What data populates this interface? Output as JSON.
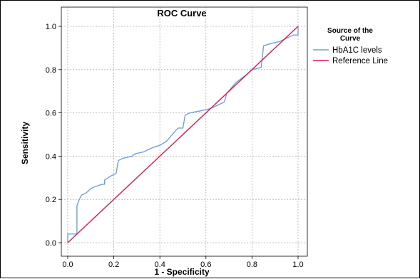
{
  "chart_data": {
    "type": "line",
    "title": "ROC Curve",
    "xlabel": "1 - Specificity",
    "ylabel": "Sensitivity",
    "xlim": [
      0,
      1
    ],
    "ylim": [
      0,
      1
    ],
    "xticks": [
      "0.0",
      "0.2",
      "0.4",
      "0.6",
      "0.8",
      "1.0"
    ],
    "yticks": [
      "0.0",
      "0.2",
      "0.4",
      "0.6",
      "0.8",
      "1.0"
    ],
    "grid": true,
    "legend": {
      "title_line1": "Source of the",
      "title_line2": "Curve",
      "placement": "right"
    },
    "series": [
      {
        "name": "HbA1C levels",
        "color": "#6fa0dc",
        "points": [
          [
            0,
            0
          ],
          [
            0,
            0.04
          ],
          [
            0.04,
            0.04
          ],
          [
            0.04,
            0.17
          ],
          [
            0.05,
            0.2
          ],
          [
            0.06,
            0.22
          ],
          [
            0.08,
            0.23
          ],
          [
            0.1,
            0.25
          ],
          [
            0.12,
            0.26
          ],
          [
            0.15,
            0.27
          ],
          [
            0.16,
            0.27
          ],
          [
            0.16,
            0.29
          ],
          [
            0.19,
            0.31
          ],
          [
            0.21,
            0.32
          ],
          [
            0.22,
            0.38
          ],
          [
            0.24,
            0.39
          ],
          [
            0.28,
            0.4
          ],
          [
            0.29,
            0.41
          ],
          [
            0.33,
            0.42
          ],
          [
            0.35,
            0.43
          ],
          [
            0.37,
            0.44
          ],
          [
            0.4,
            0.45
          ],
          [
            0.43,
            0.47
          ],
          [
            0.47,
            0.52
          ],
          [
            0.48,
            0.53
          ],
          [
            0.5,
            0.53
          ],
          [
            0.51,
            0.59
          ],
          [
            0.53,
            0.6
          ],
          [
            0.58,
            0.61
          ],
          [
            0.62,
            0.62
          ],
          [
            0.68,
            0.65
          ],
          [
            0.69,
            0.69
          ],
          [
            0.73,
            0.74
          ],
          [
            0.78,
            0.78
          ],
          [
            0.8,
            0.8
          ],
          [
            0.84,
            0.81
          ],
          [
            0.85,
            0.91
          ],
          [
            0.88,
            0.92
          ],
          [
            0.92,
            0.93
          ],
          [
            0.98,
            0.96
          ],
          [
            1.0,
            0.96
          ],
          [
            1.0,
            1.0
          ]
        ]
      },
      {
        "name": "Reference Line",
        "color": "#d81b4e",
        "points": [
          [
            0,
            0
          ],
          [
            1,
            1
          ]
        ]
      }
    ]
  }
}
